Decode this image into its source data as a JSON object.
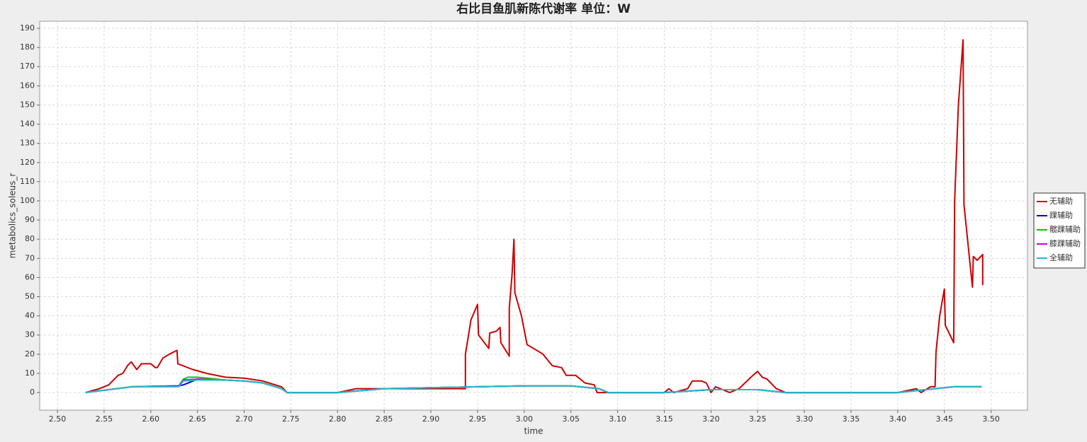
{
  "chart_data": {
    "type": "line",
    "title": "右比目鱼肌新陈代谢率 单位：W",
    "x_label": "time",
    "y_label": "metabolics_soleus_r",
    "xlim": [
      2.481,
      3.539
    ],
    "ylim": [
      -9.2,
      193.7
    ],
    "xticks": [
      {
        "value": 2.5,
        "label": "2.50"
      },
      {
        "value": 2.55,
        "label": "2.55"
      },
      {
        "value": 2.6,
        "label": "2.60"
      },
      {
        "value": 2.65,
        "label": "2.65"
      },
      {
        "value": 2.7,
        "label": "2.70"
      },
      {
        "value": 2.75,
        "label": "2.75"
      },
      {
        "value": 2.8,
        "label": "2.80"
      },
      {
        "value": 2.85,
        "label": "2.85"
      },
      {
        "value": 2.9,
        "label": "2.90"
      },
      {
        "value": 2.95,
        "label": "2.95"
      },
      {
        "value": 3.0,
        "label": "3.00"
      },
      {
        "value": 3.05,
        "label": "3.05"
      },
      {
        "value": 3.1,
        "label": "3.10"
      },
      {
        "value": 3.15,
        "label": "3.15"
      },
      {
        "value": 3.2,
        "label": "3.20"
      },
      {
        "value": 3.25,
        "label": "3.25"
      },
      {
        "value": 3.3,
        "label": "3.30"
      },
      {
        "value": 3.35,
        "label": "3.35"
      },
      {
        "value": 3.4,
        "label": "3.40"
      },
      {
        "value": 3.45,
        "label": "3.45"
      },
      {
        "value": 3.5,
        "label": "3.50"
      }
    ],
    "yticks": [
      0,
      10,
      20,
      30,
      40,
      50,
      60,
      70,
      80,
      90,
      100,
      110,
      120,
      130,
      140,
      150,
      160,
      170,
      180,
      190
    ],
    "grid": true,
    "legend": "right",
    "series": [
      {
        "name": "无辅助",
        "color": "#cc0000",
        "x": [
          2.53,
          2.545,
          2.555,
          2.565,
          2.57,
          2.575,
          2.579,
          2.585,
          2.59,
          2.6,
          2.605,
          2.607,
          2.613,
          2.62,
          2.628,
          2.629,
          2.645,
          2.66,
          2.68,
          2.7,
          2.72,
          2.74,
          2.746,
          2.8,
          2.82,
          2.9,
          2.937,
          2.937,
          2.943,
          2.95,
          2.951,
          2.962,
          2.963,
          2.97,
          2.974,
          2.975,
          2.984,
          2.984,
          2.987,
          2.989,
          2.99,
          2.997,
          3.003,
          3.01,
          3.02,
          3.03,
          3.04,
          3.045,
          3.055,
          3.065,
          3.075,
          3.078,
          3.09,
          3.15,
          3.155,
          3.16,
          3.175,
          3.18,
          3.19,
          3.195,
          3.2,
          3.205,
          3.22,
          3.23,
          3.245,
          3.25,
          3.255,
          3.26,
          3.27,
          3.28,
          3.4,
          3.41,
          3.42,
          3.425,
          3.435,
          3.44,
          3.441,
          3.445,
          3.45,
          3.451,
          3.46,
          3.461,
          3.465,
          3.47,
          3.471,
          3.48,
          3.481,
          3.485,
          3.491,
          3.491
        ],
        "values": [
          0,
          2,
          4,
          9,
          10,
          14,
          16,
          12,
          15,
          15,
          13,
          13,
          18,
          20,
          22,
          15,
          12,
          10,
          8,
          7.5,
          6,
          3,
          0,
          0,
          2,
          2,
          2,
          20,
          38,
          46,
          30,
          23,
          31,
          32,
          34,
          26,
          19,
          44,
          62,
          80,
          52,
          40,
          25,
          23,
          20,
          14,
          13,
          9,
          9,
          5,
          4,
          0,
          0,
          0,
          2,
          0,
          2,
          6,
          6,
          5,
          0,
          3,
          0,
          2,
          9,
          11,
          8,
          7,
          2,
          0,
          0,
          1,
          2,
          0,
          3,
          3,
          21,
          40,
          54,
          35,
          26,
          100,
          150,
          184,
          98,
          55,
          71,
          69,
          72,
          56
        ]
      },
      {
        "name": "踝辅助",
        "color": "#0000cc",
        "x": [
          2.53,
          2.58,
          2.63,
          2.635,
          2.645,
          2.65,
          2.68,
          2.7,
          2.72,
          2.74,
          2.746,
          2.8,
          2.85,
          2.95,
          3.0,
          3.05,
          3.08,
          3.09,
          3.15,
          3.2,
          3.25,
          3.28,
          3.4,
          3.44,
          3.46,
          3.49
        ],
        "values": [
          0,
          3,
          3.5,
          4,
          6,
          7,
          6.5,
          6,
          5,
          2,
          0,
          0,
          2,
          3,
          3.5,
          3.5,
          2,
          0,
          0,
          1.5,
          1.5,
          0,
          0,
          2,
          3,
          3
        ]
      },
      {
        "name": "髋踝辅助",
        "color": "#00cc00",
        "x": [
          2.53,
          2.58,
          2.63,
          2.635,
          2.64,
          2.65,
          2.68,
          2.7,
          2.72,
          2.74,
          2.746,
          2.8,
          2.85,
          2.95,
          3.0,
          3.05,
          3.08,
          3.09,
          3.15,
          3.2,
          3.25,
          3.28,
          3.4,
          3.44,
          3.46,
          3.49
        ],
        "values": [
          0,
          3,
          3.5,
          7,
          8,
          8,
          6.5,
          6,
          5,
          2,
          0,
          0,
          2,
          3,
          3.5,
          3.5,
          2,
          0,
          0,
          1.5,
          1.5,
          0,
          0,
          2,
          3,
          3
        ]
      },
      {
        "name": "膝踝辅助",
        "color": "#cc00cc",
        "x": [
          2.53,
          2.58,
          2.63,
          2.635,
          2.65,
          2.68,
          2.7,
          2.72,
          2.74,
          2.746,
          2.8,
          2.85,
          2.95,
          3.0,
          3.05,
          3.08,
          3.09,
          3.15,
          3.2,
          3.25,
          3.28,
          3.4,
          3.44,
          3.46,
          3.49
        ],
        "values": [
          0,
          3,
          3.5,
          6.5,
          7,
          6.5,
          6,
          5,
          2,
          0,
          0,
          2,
          3,
          3.5,
          3.5,
          2,
          0,
          0,
          1.5,
          1.5,
          0,
          0,
          2,
          3,
          3
        ]
      },
      {
        "name": "全辅助",
        "color": "#22bbcc",
        "x": [
          2.53,
          2.58,
          2.63,
          2.635,
          2.65,
          2.68,
          2.7,
          2.72,
          2.74,
          2.746,
          2.8,
          2.85,
          2.95,
          3.0,
          3.05,
          3.08,
          3.09,
          3.15,
          3.2,
          3.25,
          3.28,
          3.4,
          3.44,
          3.46,
          3.49
        ],
        "values": [
          0,
          3,
          3,
          6,
          6.5,
          6.5,
          6,
          5,
          2,
          0,
          0,
          2,
          3,
          3.5,
          3.5,
          2,
          0,
          0,
          1.5,
          1.5,
          0,
          0,
          2,
          3,
          3
        ]
      }
    ]
  }
}
